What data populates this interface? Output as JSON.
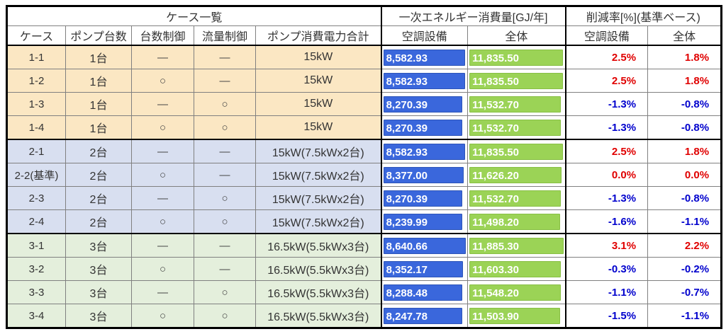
{
  "colors": {
    "bar_blue": "#3a67dc",
    "bar_green": "#9bd356",
    "positive_red": "#e00000",
    "negative_blue": "#0000cd",
    "grid_line": "#808080",
    "thick_border": "#000000",
    "group1_bg": "#fbe7c3",
    "group2_bg": "#d8dff0",
    "group3_bg": "#e4efdc"
  },
  "table": {
    "header_groups": [
      {
        "label": "ケース一覧",
        "span": 5
      },
      {
        "label": "一次エネルギー消費量[GJ/年]",
        "span": 2
      },
      {
        "label": "削減率[%](基準ベース)",
        "span": 2
      }
    ],
    "columns": [
      "ケース",
      "ポンプ台数",
      "台数制御",
      "流量制御",
      "ポンプ消費電力合計",
      "空調設備",
      "全体",
      "空調設備",
      "全体"
    ],
    "groups": [
      {
        "bg": "#fbe7c3",
        "rows": [
          {
            "case": "1-1",
            "pumps": "1台",
            "unit_control": "―",
            "flow_control": "―",
            "power_total": "15kW",
            "energy_hvac": "8,582.93",
            "energy_total": "11,835.50",
            "reduction_hvac": "2.5%",
            "reduction_total": "1.8%"
          },
          {
            "case": "1-2",
            "pumps": "1台",
            "unit_control": "○",
            "flow_control": "―",
            "power_total": "15kW",
            "energy_hvac": "8,582.93",
            "energy_total": "11,835.50",
            "reduction_hvac": "2.5%",
            "reduction_total": "1.8%"
          },
          {
            "case": "1-3",
            "pumps": "1台",
            "unit_control": "―",
            "flow_control": "○",
            "power_total": "15kW",
            "energy_hvac": "8,270.39",
            "energy_total": "11,532.70",
            "reduction_hvac": "-1.3%",
            "reduction_total": "-0.8%"
          },
          {
            "case": "1-4",
            "pumps": "1台",
            "unit_control": "○",
            "flow_control": "○",
            "power_total": "15kW",
            "energy_hvac": "8,270.39",
            "energy_total": "11,532.70",
            "reduction_hvac": "-1.3%",
            "reduction_total": "-0.8%"
          }
        ]
      },
      {
        "bg": "#d8dff0",
        "rows": [
          {
            "case": "2-1",
            "pumps": "2台",
            "unit_control": "―",
            "flow_control": "―",
            "power_total": "15kW(7.5kWx2台)",
            "energy_hvac": "8,582.93",
            "energy_total": "11,835.50",
            "reduction_hvac": "2.5%",
            "reduction_total": "1.8%"
          },
          {
            "case": "2-2(基準)",
            "pumps": "2台",
            "unit_control": "○",
            "flow_control": "―",
            "power_total": "15kW(7.5kWx2台)",
            "energy_hvac": "8,377.00",
            "energy_total": "11,626.20",
            "reduction_hvac": "0.0%",
            "reduction_total": "0.0%"
          },
          {
            "case": "2-3",
            "pumps": "2台",
            "unit_control": "―",
            "flow_control": "○",
            "power_total": "15kW(7.5kWx2台)",
            "energy_hvac": "8,270.39",
            "energy_total": "11,532.70",
            "reduction_hvac": "-1.3%",
            "reduction_total": "-0.8%"
          },
          {
            "case": "2-4",
            "pumps": "2台",
            "unit_control": "○",
            "flow_control": "○",
            "power_total": "15kW(7.5kWx2台)",
            "energy_hvac": "8,239.99",
            "energy_total": "11,498.20",
            "reduction_hvac": "-1.6%",
            "reduction_total": "-1.1%"
          }
        ]
      },
      {
        "bg": "#e4efdc",
        "rows": [
          {
            "case": "3-1",
            "pumps": "3台",
            "unit_control": "―",
            "flow_control": "―",
            "power_total": "16.5kW(5.5kWx3台)",
            "energy_hvac": "8,640.66",
            "energy_total": "11,885.30",
            "reduction_hvac": "3.1%",
            "reduction_total": "2.2%"
          },
          {
            "case": "3-2",
            "pumps": "3台",
            "unit_control": "○",
            "flow_control": "―",
            "power_total": "16.5kW(5.5kWx3台)",
            "energy_hvac": "8,352.17",
            "energy_total": "11,603.30",
            "reduction_hvac": "-0.3%",
            "reduction_total": "-0.2%"
          },
          {
            "case": "3-3",
            "pumps": "3台",
            "unit_control": "―",
            "flow_control": "○",
            "power_total": "16.5kW(5.5kWx3台)",
            "energy_hvac": "8,288.48",
            "energy_total": "11,548.20",
            "reduction_hvac": "-1.1%",
            "reduction_total": "-0.7%"
          },
          {
            "case": "3-4",
            "pumps": "3台",
            "unit_control": "○",
            "flow_control": "○",
            "power_total": "16.5kW(5.5kWx3台)",
            "energy_hvac": "8,247.78",
            "energy_total": "11,503.90",
            "reduction_hvac": "-1.5%",
            "reduction_total": "-1.1%"
          }
        ]
      }
    ]
  }
}
